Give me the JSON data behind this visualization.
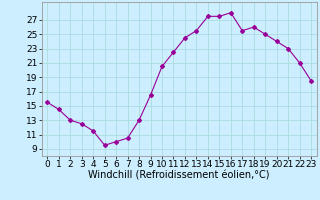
{
  "x": [
    0,
    1,
    2,
    3,
    4,
    5,
    6,
    7,
    8,
    9,
    10,
    11,
    12,
    13,
    14,
    15,
    16,
    17,
    18,
    19,
    20,
    21,
    22,
    23
  ],
  "y": [
    15.5,
    14.5,
    13,
    12.5,
    11.5,
    9.5,
    10,
    10.5,
    13,
    16.5,
    20.5,
    22.5,
    24.5,
    25.5,
    27.5,
    27.5,
    28,
    25.5,
    26,
    25,
    24,
    23,
    21,
    18.5
  ],
  "line_color": "#990099",
  "marker": "D",
  "marker_size": 2,
  "bg_color": "#cceeff",
  "grid_color": "#aadddd",
  "xlabel": "Windchill (Refroidissement éolien,°C)",
  "xlabel_fontsize": 7,
  "ytick_labels": [
    "9",
    "11",
    "13",
    "15",
    "17",
    "19",
    "21",
    "23",
    "25",
    "27"
  ],
  "ytick_values": [
    9,
    11,
    13,
    15,
    17,
    19,
    21,
    23,
    25,
    27
  ],
  "ylim": [
    8.0,
    29.5
  ],
  "xlim": [
    -0.5,
    23.5
  ],
  "tick_fontsize": 6.5,
  "xtick_labels": [
    "0",
    "1",
    "2",
    "3",
    "4",
    "5",
    "6",
    "7",
    "8",
    "9",
    "10",
    "11",
    "12",
    "13",
    "14",
    "15",
    "16",
    "17",
    "18",
    "19",
    "20",
    "21",
    "22",
    "23"
  ]
}
